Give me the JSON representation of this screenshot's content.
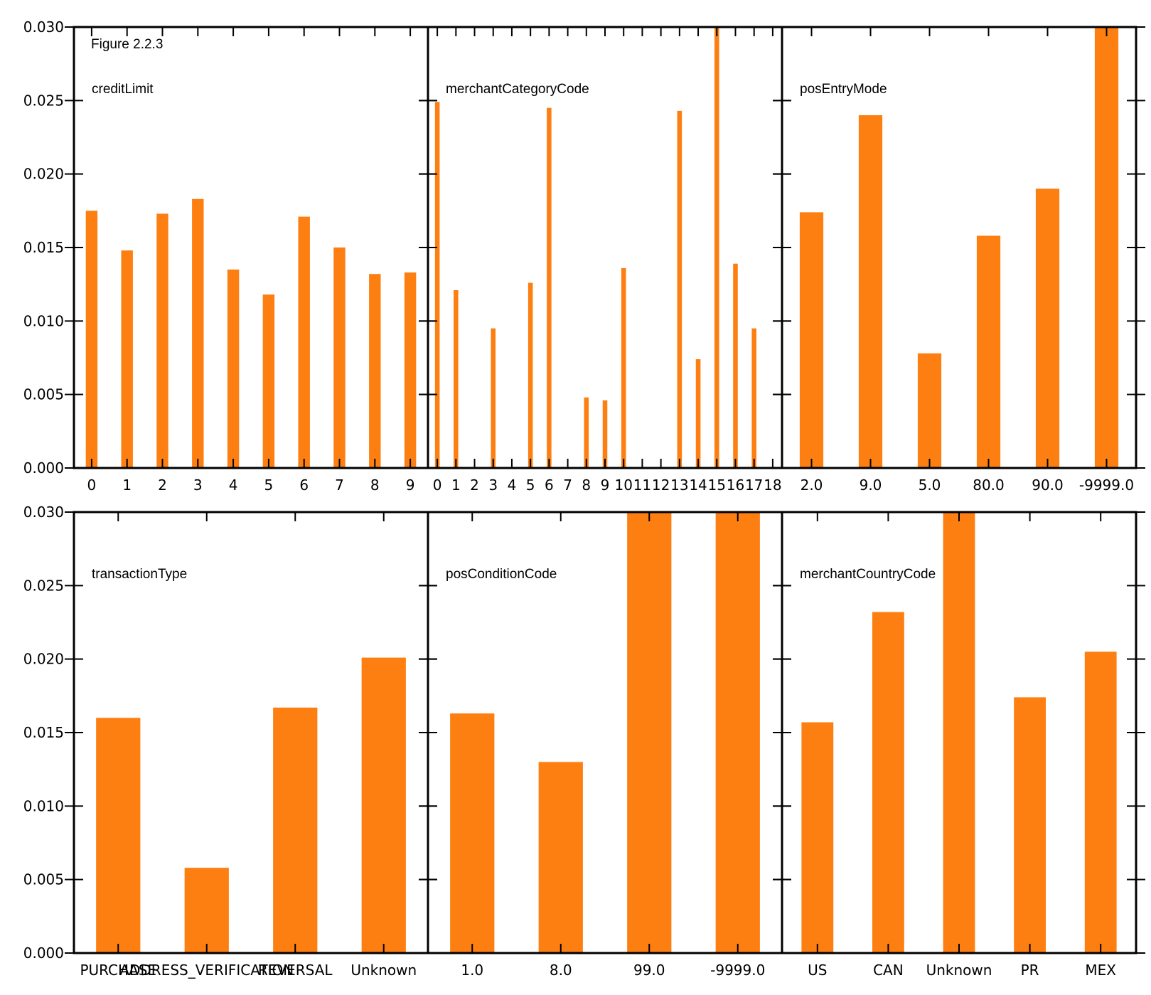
{
  "figure_label": "Figure 2.2.3",
  "colors": {
    "bar": "#fd7f12",
    "axis": "#000000"
  },
  "y_tick_labels": [
    "0.000",
    "0.005",
    "0.010",
    "0.015",
    "0.020",
    "0.025",
    "0.030"
  ],
  "chart_data": [
    {
      "type": "bar",
      "title": "creditLimit",
      "categories": [
        "0",
        "1",
        "2",
        "3",
        "4",
        "5",
        "6",
        "7",
        "8",
        "9"
      ],
      "values": [
        0.0175,
        0.0148,
        0.0173,
        0.0183,
        0.0135,
        0.0118,
        0.0171,
        0.015,
        0.0132,
        0.0133
      ],
      "ylim": [
        0,
        0.03
      ],
      "grid": false
    },
    {
      "type": "bar",
      "title": "merchantCategoryCode",
      "categories": [
        "0",
        "1",
        "2",
        "3",
        "4",
        "5",
        "6",
        "7",
        "8",
        "9",
        "10",
        "11",
        "12",
        "13",
        "14",
        "15",
        "16",
        "17",
        "18"
      ],
      "values": [
        0.0249,
        0.0121,
        0,
        0.0095,
        0,
        0.0126,
        0.0245,
        0,
        0.0048,
        0.0046,
        0.0136,
        0,
        0,
        0.0243,
        0.0074,
        0.03,
        0.0139,
        0.0095,
        0
      ],
      "ylim": [
        0,
        0.03
      ],
      "grid": false
    },
    {
      "type": "bar",
      "title": "posEntryMode",
      "categories": [
        "2.0",
        "9.0",
        "5.0",
        "80.0",
        "90.0",
        "-9999.0"
      ],
      "values": [
        0.0174,
        0.024,
        0.0078,
        0.0158,
        0.019,
        0.03
      ],
      "ylim": [
        0,
        0.03
      ],
      "grid": false
    },
    {
      "type": "bar",
      "title": "transactionType",
      "categories": [
        "PURCHASE",
        "ADDRESS_VERIFICATION",
        "REVERSAL",
        "Unknown"
      ],
      "values": [
        0.016,
        0.0058,
        0.0167,
        0.0201
      ],
      "ylim": [
        0,
        0.03
      ],
      "grid": false
    },
    {
      "type": "bar",
      "title": "posConditionCode",
      "categories": [
        "1.0",
        "8.0",
        "99.0",
        "-9999.0"
      ],
      "values": [
        0.0163,
        0.013,
        0.03,
        0.03
      ],
      "ylim": [
        0,
        0.03
      ],
      "grid": false
    },
    {
      "type": "bar",
      "title": "merchantCountryCode",
      "categories": [
        "US",
        "CAN",
        "Unknown",
        "PR",
        "MEX"
      ],
      "values": [
        0.0157,
        0.0232,
        0.03,
        0.0174,
        0.0205
      ],
      "ylim": [
        0,
        0.03
      ],
      "grid": false
    }
  ]
}
